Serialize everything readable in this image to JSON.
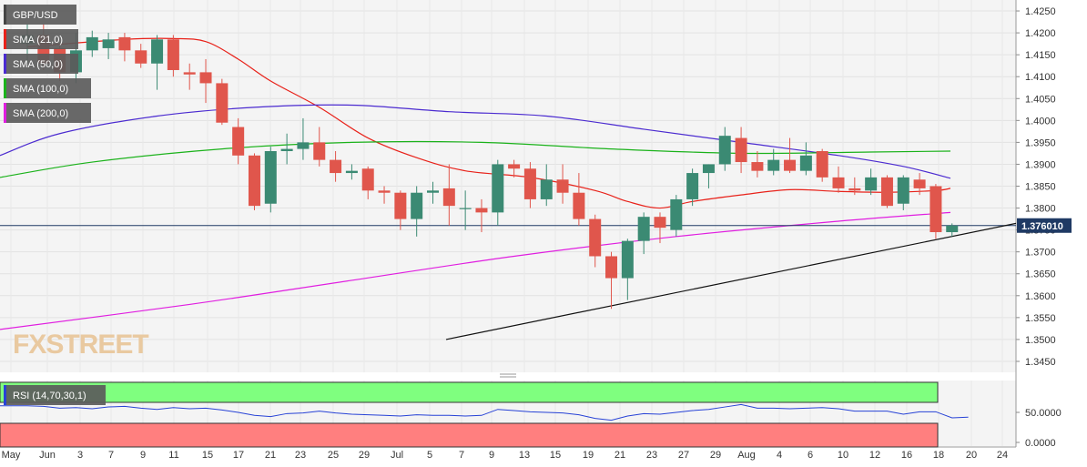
{
  "chart_data": {
    "type": "candlestick",
    "symbol": "GBP/USD",
    "price_axis": {
      "ticks": [
        "1.4250",
        "1.4200",
        "1.4150",
        "1.4100",
        "1.4050",
        "1.4000",
        "1.3950",
        "1.3900",
        "1.3850",
        "1.3800",
        "1.3750",
        "1.3700",
        "1.3650",
        "1.3600",
        "1.3550",
        "1.3500",
        "1.3450"
      ],
      "range": [
        1.3425,
        1.4275
      ]
    },
    "last_price": "1.376010",
    "date_axis": [
      "May",
      "Jun",
      "3",
      "7",
      "9",
      "11",
      "15",
      "17",
      "21",
      "23",
      "25",
      "29",
      "Jul",
      "5",
      "7",
      "9",
      "13",
      "15",
      "19",
      "21",
      "23",
      "27",
      "29",
      "Aug",
      "4",
      "6",
      "10",
      "12",
      "16",
      "18",
      "20",
      "24"
    ],
    "candles": [
      {
        "d": "May 31",
        "o": 1.4175,
        "h": 1.422,
        "l": 1.413,
        "c": 1.4195
      },
      {
        "d": "Jun 1",
        "o": 1.4195,
        "h": 1.422,
        "l": 1.4115,
        "c": 1.413
      },
      {
        "d": "Jun 2",
        "o": 1.4165,
        "h": 1.4175,
        "l": 1.409,
        "c": 1.411
      },
      {
        "d": "Jun 3",
        "o": 1.411,
        "h": 1.42,
        "l": 1.4085,
        "c": 1.416
      },
      {
        "d": "Jun 4",
        "o": 1.416,
        "h": 1.4205,
        "l": 1.4145,
        "c": 1.419
      },
      {
        "d": "Jun 7",
        "o": 1.4165,
        "h": 1.42,
        "l": 1.414,
        "c": 1.4185
      },
      {
        "d": "Jun 8",
        "o": 1.419,
        "h": 1.42,
        "l": 1.4135,
        "c": 1.416
      },
      {
        "d": "Jun 9",
        "o": 1.416,
        "h": 1.4175,
        "l": 1.412,
        "c": 1.413
      },
      {
        "d": "Jun 10",
        "o": 1.413,
        "h": 1.4195,
        "l": 1.407,
        "c": 1.4185
      },
      {
        "d": "Jun 11",
        "o": 1.4185,
        "h": 1.4195,
        "l": 1.41,
        "c": 1.4115
      },
      {
        "d": "Jun 14",
        "o": 1.411,
        "h": 1.413,
        "l": 1.407,
        "c": 1.4105
      },
      {
        "d": "Jun 15",
        "o": 1.411,
        "h": 1.414,
        "l": 1.404,
        "c": 1.4085
      },
      {
        "d": "Jun 16",
        "o": 1.4085,
        "h": 1.4095,
        "l": 1.399,
        "c": 1.3995
      },
      {
        "d": "Jun 17",
        "o": 1.3985,
        "h": 1.4005,
        "l": 1.39,
        "c": 1.392
      },
      {
        "d": "Jun 18",
        "o": 1.392,
        "h": 1.3925,
        "l": 1.3795,
        "c": 1.3805
      },
      {
        "d": "Jun 21",
        "o": 1.381,
        "h": 1.394,
        "l": 1.379,
        "c": 1.393
      },
      {
        "d": "Jun 22",
        "o": 1.393,
        "h": 1.397,
        "l": 1.39,
        "c": 1.3935
      },
      {
        "d": "Jun 23",
        "o": 1.3935,
        "h": 1.4005,
        "l": 1.391,
        "c": 1.395
      },
      {
        "d": "Jun 24",
        "o": 1.395,
        "h": 1.3985,
        "l": 1.3895,
        "c": 1.391
      },
      {
        "d": "Jun 25",
        "o": 1.391,
        "h": 1.393,
        "l": 1.386,
        "c": 1.388
      },
      {
        "d": "Jun 28",
        "o": 1.388,
        "h": 1.39,
        "l": 1.3865,
        "c": 1.3885
      },
      {
        "d": "Jun 29",
        "o": 1.389,
        "h": 1.3895,
        "l": 1.382,
        "c": 1.384
      },
      {
        "d": "Jun 30",
        "o": 1.384,
        "h": 1.385,
        "l": 1.381,
        "c": 1.3835
      },
      {
        "d": "Jul 1",
        "o": 1.3835,
        "h": 1.384,
        "l": 1.375,
        "c": 1.3775
      },
      {
        "d": "Jul 2",
        "o": 1.3775,
        "h": 1.385,
        "l": 1.3735,
        "c": 1.3835
      },
      {
        "d": "Jul 5",
        "o": 1.3835,
        "h": 1.386,
        "l": 1.381,
        "c": 1.384
      },
      {
        "d": "Jul 6",
        "o": 1.3845,
        "h": 1.39,
        "l": 1.376,
        "c": 1.3805
      },
      {
        "d": "Jul 7",
        "o": 1.38,
        "h": 1.384,
        "l": 1.375,
        "c": 1.38
      },
      {
        "d": "Jul 8",
        "o": 1.38,
        "h": 1.382,
        "l": 1.3745,
        "c": 1.379
      },
      {
        "d": "Jul 9",
        "o": 1.379,
        "h": 1.391,
        "l": 1.376,
        "c": 1.39
      },
      {
        "d": "Jul 12",
        "o": 1.39,
        "h": 1.391,
        "l": 1.387,
        "c": 1.389
      },
      {
        "d": "Jul 13",
        "o": 1.389,
        "h": 1.3905,
        "l": 1.38,
        "c": 1.382
      },
      {
        "d": "Jul 14",
        "o": 1.382,
        "h": 1.39,
        "l": 1.3805,
        "c": 1.3865
      },
      {
        "d": "Jul 15",
        "o": 1.3865,
        "h": 1.39,
        "l": 1.381,
        "c": 1.3835
      },
      {
        "d": "Jul 16",
        "o": 1.3835,
        "h": 1.388,
        "l": 1.376,
        "c": 1.3775
      },
      {
        "d": "Jul 19",
        "o": 1.3775,
        "h": 1.3785,
        "l": 1.3665,
        "c": 1.369
      },
      {
        "d": "Jul 20",
        "o": 1.369,
        "h": 1.37,
        "l": 1.357,
        "c": 1.364
      },
      {
        "d": "Jul 21",
        "o": 1.364,
        "h": 1.373,
        "l": 1.359,
        "c": 1.3725
      },
      {
        "d": "Jul 22",
        "o": 1.3725,
        "h": 1.379,
        "l": 1.3695,
        "c": 1.378
      },
      {
        "d": "Jul 23",
        "o": 1.378,
        "h": 1.379,
        "l": 1.372,
        "c": 1.3755
      },
      {
        "d": "Jul 26",
        "o": 1.375,
        "h": 1.383,
        "l": 1.3735,
        "c": 1.382
      },
      {
        "d": "Jul 27",
        "o": 1.382,
        "h": 1.389,
        "l": 1.3805,
        "c": 1.388
      },
      {
        "d": "Jul 28",
        "o": 1.388,
        "h": 1.39,
        "l": 1.3845,
        "c": 1.39
      },
      {
        "d": "Jul 29",
        "o": 1.39,
        "h": 1.3985,
        "l": 1.3885,
        "c": 1.3965
      },
      {
        "d": "Jul 30",
        "o": 1.396,
        "h": 1.3985,
        "l": 1.388,
        "c": 1.3905
      },
      {
        "d": "Aug 2",
        "o": 1.3905,
        "h": 1.393,
        "l": 1.387,
        "c": 1.3885
      },
      {
        "d": "Aug 3",
        "o": 1.3885,
        "h": 1.3935,
        "l": 1.3875,
        "c": 1.391
      },
      {
        "d": "Aug 4",
        "o": 1.391,
        "h": 1.396,
        "l": 1.388,
        "c": 1.3885
      },
      {
        "d": "Aug 5",
        "o": 1.3885,
        "h": 1.395,
        "l": 1.3875,
        "c": 1.392
      },
      {
        "d": "Aug 6",
        "o": 1.393,
        "h": 1.3935,
        "l": 1.386,
        "c": 1.387
      },
      {
        "d": "Aug 9",
        "o": 1.387,
        "h": 1.3895,
        "l": 1.3835,
        "c": 1.3845
      },
      {
        "d": "Aug 10",
        "o": 1.3845,
        "h": 1.387,
        "l": 1.383,
        "c": 1.384
      },
      {
        "d": "Aug 11",
        "o": 1.384,
        "h": 1.389,
        "l": 1.383,
        "c": 1.387
      },
      {
        "d": "Aug 12",
        "o": 1.387,
        "h": 1.3875,
        "l": 1.38,
        "c": 1.3805
      },
      {
        "d": "Aug 13",
        "o": 1.381,
        "h": 1.3875,
        "l": 1.3795,
        "c": 1.387
      },
      {
        "d": "Aug 16",
        "o": 1.3865,
        "h": 1.388,
        "l": 1.383,
        "c": 1.3845
      },
      {
        "d": "Aug 17",
        "o": 1.385,
        "h": 1.3855,
        "l": 1.373,
        "c": 1.3745
      },
      {
        "d": "Aug 18",
        "o": 1.3745,
        "h": 1.3765,
        "l": 1.3735,
        "c": 1.376
      }
    ],
    "indicators": [
      {
        "label": "SMA (21,0)",
        "color": "#e8221a",
        "values": [
          [
            0,
            1.4168
          ],
          [
            6,
            1.4185
          ],
          [
            9,
            1.4187
          ],
          [
            11,
            1.418
          ],
          [
            13,
            1.414
          ],
          [
            15,
            1.409
          ],
          [
            18,
            1.403
          ],
          [
            21,
            1.396
          ],
          [
            24,
            1.3915
          ],
          [
            27,
            1.3885
          ],
          [
            31,
            1.387
          ],
          [
            35,
            1.384
          ],
          [
            37,
            1.3815
          ],
          [
            39,
            1.38
          ],
          [
            41,
            1.3815
          ],
          [
            44,
            1.383
          ],
          [
            47,
            1.3842
          ],
          [
            50,
            1.3838
          ],
          [
            53,
            1.3836
          ],
          [
            56,
            1.384
          ],
          [
            57,
            1.3845
          ]
        ]
      },
      {
        "label": "SMA (50,0)",
        "color": "#4b2bd0",
        "values": [
          [
            -4,
            1.392
          ],
          [
            2,
            1.397
          ],
          [
            8,
            1.401
          ],
          [
            14,
            1.403
          ],
          [
            20,
            1.4035
          ],
          [
            26,
            1.402
          ],
          [
            32,
            1.401
          ],
          [
            38,
            1.398
          ],
          [
            44,
            1.395
          ],
          [
            50,
            1.392
          ],
          [
            54,
            1.3895
          ],
          [
            57,
            1.3868
          ]
        ]
      },
      {
        "label": "SMA (100,0)",
        "color": "#1bb21b",
        "values": [
          [
            -4,
            1.387
          ],
          [
            4,
            1.3905
          ],
          [
            12,
            1.3935
          ],
          [
            20,
            1.395
          ],
          [
            28,
            1.395
          ],
          [
            36,
            1.3935
          ],
          [
            44,
            1.3925
          ],
          [
            52,
            1.3928
          ],
          [
            57,
            1.393
          ]
        ]
      },
      {
        "label": "SMA (200,0)",
        "color": "#e01ee0",
        "values": [
          [
            -4,
            1.3523
          ],
          [
            10,
            1.358
          ],
          [
            20,
            1.3635
          ],
          [
            30,
            1.369
          ],
          [
            40,
            1.3735
          ],
          [
            50,
            1.377
          ],
          [
            57,
            1.379
          ]
        ]
      }
    ],
    "trendline": [
      [
        20,
        1.35
      ],
      [
        60,
        1.3765
      ]
    ],
    "rsi": {
      "label": "RSI (14,70,30,1)",
      "ticks": [
        "50.0000",
        "0.0000"
      ],
      "values": [
        61,
        60,
        57,
        58,
        56,
        59,
        60,
        57,
        55,
        58,
        56,
        57,
        54,
        50,
        45,
        43,
        48,
        49,
        52,
        49,
        47,
        46,
        45,
        44,
        46,
        45,
        45,
        44,
        45,
        55,
        53,
        51,
        50,
        49,
        46,
        40,
        37,
        44,
        48,
        47,
        50,
        53,
        55,
        59,
        63,
        57,
        57,
        56,
        57,
        58,
        56,
        52,
        52,
        52,
        47,
        51,
        51,
        41,
        42
      ]
    },
    "watermark": "FXSTREET"
  }
}
